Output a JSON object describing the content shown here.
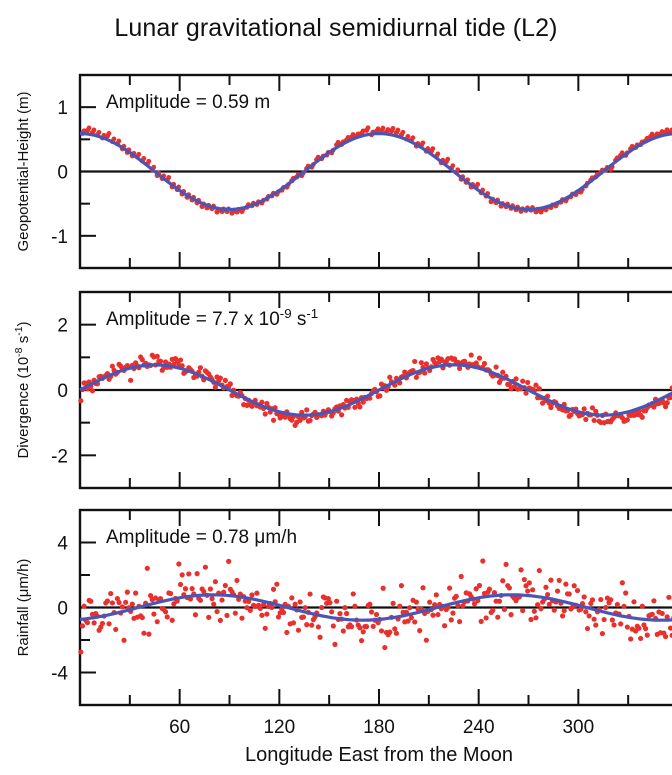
{
  "figure": {
    "title": "Lunar gravitational semidiurnal tide (L2)",
    "xlabel": "Longitude East from the Moon"
  },
  "colors": {
    "points": "#e8302c",
    "fit": "#4a55b5",
    "axis": "#111111"
  },
  "chart_data": [
    {
      "type": "scatter",
      "title": "",
      "ylabel": "Geopotential-Height (m)",
      "annotation": "Amplitude = 0.59 m",
      "xlim": [
        0,
        360
      ],
      "ylim": [
        -1.5,
        1.5
      ],
      "xticks": [
        60,
        120,
        180,
        240,
        300
      ],
      "yticks": [
        1,
        0,
        -1
      ],
      "series": [
        {
          "kind": "points",
          "amplitude": 0.62,
          "phase_deg": 0,
          "cycles": 2,
          "noise": 0.02,
          "count": 120
        },
        {
          "kind": "fit_line",
          "amplitude": 0.59,
          "phase_deg": 0,
          "cycles": 2
        }
      ]
    },
    {
      "type": "scatter",
      "title": "",
      "ylabel": "Divergence (10-8 s-1)",
      "annotation": "Amplitude = 7.7 x 10-9 s-1",
      "xlim": [
        0,
        360
      ],
      "ylim": [
        -3,
        3
      ],
      "xticks": [
        60,
        120,
        180,
        240,
        300
      ],
      "yticks": [
        2,
        0,
        -2
      ],
      "series": [
        {
          "kind": "points",
          "amplitude": 0.85,
          "phase_deg": 45,
          "cycles": 2,
          "noise": 0.12,
          "count": 360
        },
        {
          "kind": "fit_line",
          "amplitude": 0.77,
          "phase_deg": 45,
          "cycles": 2
        }
      ]
    },
    {
      "type": "scatter",
      "title": "",
      "ylabel": "Rainfall (μm/h)",
      "annotation": "Amplitude = 0.78 μm/h",
      "xlim": [
        0,
        360
      ],
      "ylim": [
        -6,
        6
      ],
      "xticks": [
        60,
        120,
        180,
        240,
        300
      ],
      "yticks": [
        4,
        0,
        -4
      ],
      "series": [
        {
          "kind": "points",
          "amplitude": 0.78,
          "phase_deg": 80,
          "cycles": 2,
          "noise": 0.75,
          "count": 360
        },
        {
          "kind": "fit_line",
          "amplitude": 0.78,
          "phase_deg": 80,
          "cycles": 2
        }
      ]
    }
  ]
}
